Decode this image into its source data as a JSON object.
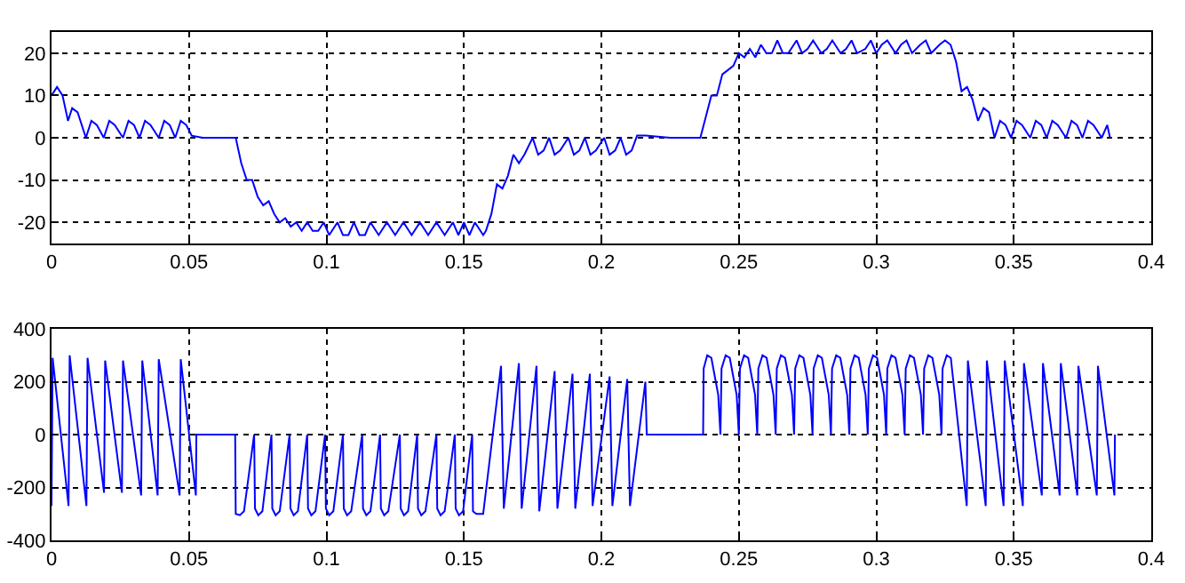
{
  "chart_data": [
    {
      "type": "line",
      "xlim": [
        0,
        0.4
      ],
      "xticks": [
        0,
        0.05,
        0.1,
        0.15,
        0.2,
        0.25,
        0.3,
        0.35,
        0.4
      ],
      "ylim": [
        -25,
        25
      ],
      "yticks": [
        -20,
        -10,
        0,
        10,
        20
      ],
      "grid": true,
      "line_style": "solid",
      "series": [
        {
          "color": "#0000ff",
          "x": [
            0,
            0.002,
            0.004,
            0.006,
            0.0075,
            0.0095,
            0.0125,
            0.0145,
            0.0165,
            0.019,
            0.021,
            0.023,
            0.026,
            0.028,
            0.03,
            0.032,
            0.034,
            0.036,
            0.039,
            0.041,
            0.043,
            0.045,
            0.047,
            0.049,
            0.051,
            0.055,
            0.06,
            0.067,
            0.069,
            0.071,
            0.073,
            0.075,
            0.077,
            0.079,
            0.081,
            0.083,
            0.085,
            0.087,
            0.089,
            0.091,
            0.093,
            0.095,
            0.097,
            0.099,
            0.101,
            0.104,
            0.106,
            0.108,
            0.11,
            0.112,
            0.114,
            0.116,
            0.119,
            0.122,
            0.125,
            0.128,
            0.131,
            0.134,
            0.137,
            0.14,
            0.143,
            0.146,
            0.148,
            0.15,
            0.152,
            0.154,
            0.157,
            0.158,
            0.16,
            0.162,
            0.164,
            0.166,
            0.168,
            0.17,
            0.172,
            0.175,
            0.177,
            0.179,
            0.181,
            0.183,
            0.185,
            0.188,
            0.19,
            0.192,
            0.194,
            0.196,
            0.198,
            0.201,
            0.203,
            0.205,
            0.207,
            0.209,
            0.211,
            0.213,
            0.216,
            0.225,
            0.236,
            0.238,
            0.24,
            0.242,
            0.244,
            0.246,
            0.248,
            0.25,
            0.252,
            0.254,
            0.256,
            0.258,
            0.26,
            0.262,
            0.264,
            0.266,
            0.268,
            0.271,
            0.273,
            0.275,
            0.277,
            0.28,
            0.282,
            0.284,
            0.287,
            0.289,
            0.291,
            0.293,
            0.296,
            0.298,
            0.3,
            0.302,
            0.304,
            0.307,
            0.309,
            0.311,
            0.313,
            0.316,
            0.318,
            0.32,
            0.323,
            0.325,
            0.327,
            0.329,
            0.331,
            0.333,
            0.335,
            0.337,
            0.339,
            0.341,
            0.343,
            0.345,
            0.347,
            0.349,
            0.351,
            0.353,
            0.356,
            0.358,
            0.36,
            0.362,
            0.364,
            0.366,
            0.369,
            0.371,
            0.373,
            0.375,
            0.377,
            0.379,
            0.382,
            0.384,
            0.385
          ],
          "values": [
            10,
            12,
            10,
            4,
            7,
            6,
            0,
            4,
            3,
            0,
            4,
            3,
            0,
            4,
            3,
            0,
            4,
            3,
            0,
            4,
            3,
            0,
            4,
            3,
            0.5,
            0,
            0,
            0,
            -6,
            -10,
            -10,
            -14,
            -16,
            -15,
            -18,
            -20,
            -19,
            -21,
            -20,
            -22,
            -20,
            -22,
            -22,
            -20,
            -23,
            -20,
            -23,
            -23,
            -20,
            -23,
            -23,
            -20,
            -23,
            -20,
            -23,
            -20,
            -23,
            -20,
            -23,
            -20,
            -23,
            -20,
            -23,
            -20,
            -23,
            -20,
            -23,
            -22,
            -18,
            -11,
            -12,
            -9,
            -4,
            -6,
            -4,
            0,
            -4,
            -3,
            0,
            -4,
            -3,
            0,
            -4,
            -3,
            0,
            -4,
            -3,
            0,
            -4,
            -3,
            0,
            -4,
            -3,
            0.5,
            0.5,
            0,
            0,
            5,
            10,
            10,
            15,
            16,
            17,
            20,
            19,
            21,
            19,
            22,
            20,
            20,
            23,
            20,
            20,
            23,
            20,
            21,
            23,
            20,
            21,
            23,
            20,
            21,
            23,
            20,
            21,
            23,
            20,
            22,
            23,
            20,
            22,
            23,
            20,
            22,
            23,
            20,
            22,
            23,
            22,
            18,
            11,
            12,
            9,
            4,
            7,
            6,
            0,
            4,
            3,
            0,
            4,
            3,
            0,
            4,
            3,
            0,
            4,
            3,
            0,
            4,
            3,
            0,
            4,
            3,
            0,
            3,
            0
          ]
        }
      ]
    },
    {
      "type": "line",
      "xlim": [
        0,
        0.4
      ],
      "xticks": [
        0,
        0.05,
        0.1,
        0.15,
        0.2,
        0.25,
        0.3,
        0.35,
        0.4
      ],
      "ylim": [
        -400,
        400
      ],
      "yticks": [
        -400,
        -200,
        0,
        200,
        400
      ],
      "grid": true,
      "line_style": "solid",
      "series": [
        {
          "color": "#0000ff",
          "x": [
            0,
            0.0004,
            0.0062,
            0.0066,
            0.0127,
            0.0131,
            0.0191,
            0.0195,
            0.0256,
            0.026,
            0.0326,
            0.033,
            0.0386,
            0.039,
            0.0466,
            0.047,
            0.0525,
            0.0527,
            0.0668,
            0.067,
            0.0685,
            0.07,
            0.0737,
            0.074,
            0.0752,
            0.0767,
            0.08,
            0.0803,
            0.0815,
            0.083,
            0.0866,
            0.0869,
            0.0881,
            0.0896,
            0.093,
            0.0933,
            0.0945,
            0.096,
            0.0995,
            0.0998,
            0.101,
            0.1025,
            0.106,
            0.1063,
            0.1075,
            0.109,
            0.113,
            0.1133,
            0.1145,
            0.116,
            0.1195,
            0.1198,
            0.121,
            0.1225,
            0.1267,
            0.127,
            0.1282,
            0.1297,
            0.133,
            0.1333,
            0.1345,
            0.136,
            0.14,
            0.1403,
            0.1415,
            0.143,
            0.1467,
            0.147,
            0.1482,
            0.1497,
            0.153,
            0.1533,
            0.1545,
            0.157,
            0.1635,
            0.1645,
            0.17,
            0.171,
            0.1764,
            0.1774,
            0.183,
            0.184,
            0.1895,
            0.1905,
            0.1958,
            0.1968,
            0.203,
            0.204,
            0.2094,
            0.2104,
            0.216,
            0.2165,
            0.237,
            0.2372,
            0.2385,
            0.24,
            0.2425,
            0.2433,
            0.2437,
            0.2452,
            0.2467,
            0.2492,
            0.25,
            0.2504,
            0.2519,
            0.2534,
            0.2559,
            0.2567,
            0.2571,
            0.2586,
            0.2601,
            0.2626,
            0.2634,
            0.2638,
            0.2653,
            0.2668,
            0.2693,
            0.2701,
            0.2705,
            0.272,
            0.2735,
            0.276,
            0.2768,
            0.2772,
            0.2787,
            0.2802,
            0.2827,
            0.2835,
            0.2839,
            0.2854,
            0.2869,
            0.2894,
            0.2902,
            0.2906,
            0.2921,
            0.2936,
            0.2961,
            0.2969,
            0.2973,
            0.2988,
            0.3003,
            0.3028,
            0.3036,
            0.304,
            0.3055,
            0.307,
            0.3095,
            0.3103,
            0.3107,
            0.3122,
            0.3137,
            0.3162,
            0.317,
            0.3174,
            0.3189,
            0.3204,
            0.3229,
            0.3237,
            0.3241,
            0.3256,
            0.3271,
            0.3329,
            0.3333,
            0.3398,
            0.3402,
            0.3463,
            0.3467,
            0.3533,
            0.3537,
            0.3602,
            0.3606,
            0.3667,
            0.3671,
            0.3731,
            0.3735,
            0.3802,
            0.3806,
            0.3866,
            0.3868
          ],
          "values": [
            -270,
            290,
            -270,
            300,
            -270,
            290,
            -220,
            280,
            -220,
            280,
            -230,
            280,
            -230,
            285,
            -230,
            285,
            -230,
            0,
            0,
            -300,
            -305,
            -290,
            0,
            -280,
            -305,
            -290,
            0,
            -280,
            -305,
            -290,
            0,
            -280,
            -305,
            -290,
            0,
            -280,
            -305,
            -290,
            0,
            -280,
            -305,
            -290,
            0,
            -280,
            -305,
            -290,
            0,
            -280,
            -305,
            -290,
            0,
            -280,
            -305,
            -290,
            0,
            -280,
            -305,
            -290,
            0,
            -280,
            -305,
            -290,
            0,
            -280,
            -305,
            -290,
            0,
            -280,
            -305,
            -290,
            0,
            -290,
            -300,
            -300,
            260,
            -280,
            270,
            -280,
            260,
            -290,
            240,
            -280,
            230,
            -280,
            230,
            -270,
            220,
            -270,
            210,
            -270,
            200,
            0,
            0,
            250,
            300,
            290,
            150,
            0,
            250,
            300,
            290,
            150,
            0,
            250,
            300,
            290,
            150,
            0,
            250,
            300,
            290,
            150,
            0,
            250,
            300,
            290,
            150,
            0,
            250,
            300,
            290,
            150,
            0,
            250,
            300,
            290,
            150,
            0,
            250,
            300,
            290,
            150,
            0,
            250,
            300,
            290,
            150,
            0,
            250,
            300,
            290,
            150,
            0,
            250,
            300,
            290,
            150,
            0,
            250,
            300,
            290,
            150,
            0,
            250,
            300,
            290,
            150,
            0,
            250,
            300,
            290,
            -270,
            280,
            -270,
            280,
            -270,
            280,
            -270,
            270,
            -230,
            270,
            -230,
            270,
            -230,
            260,
            -230,
            260,
            -230,
            0
          ]
        }
      ]
    }
  ]
}
